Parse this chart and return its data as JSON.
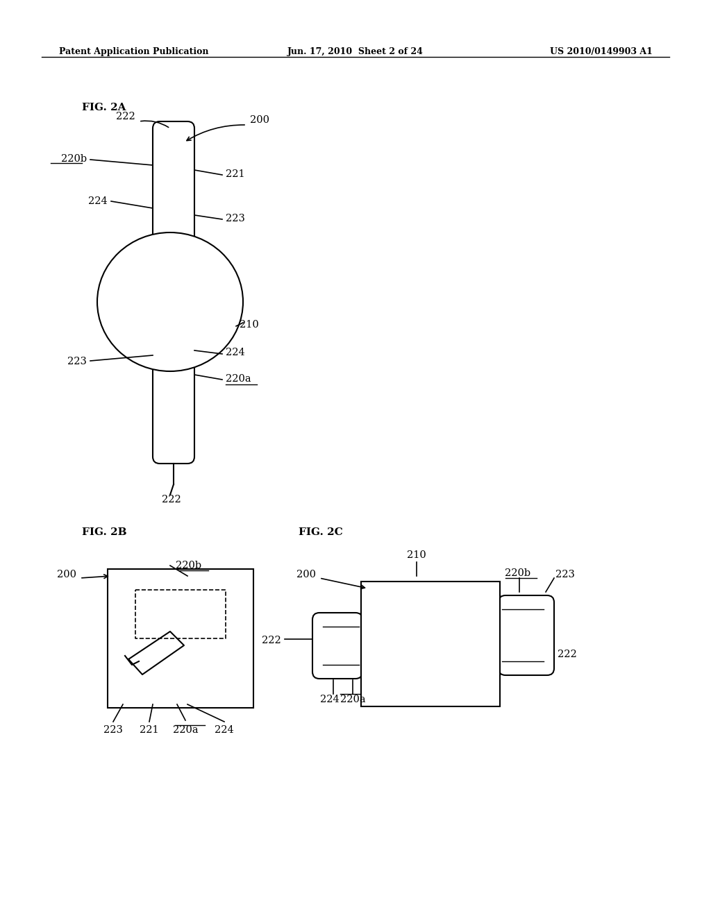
{
  "bg_color": "#ffffff",
  "header_left": "Patent Application Publication",
  "header_mid": "Jun. 17, 2010  Sheet 2 of 24",
  "header_right": "US 2010/0149903 A1",
  "fig2a_label": "FIG. 2A",
  "fig2b_label": "FIG. 2B",
  "fig2c_label": "FIG. 2C"
}
